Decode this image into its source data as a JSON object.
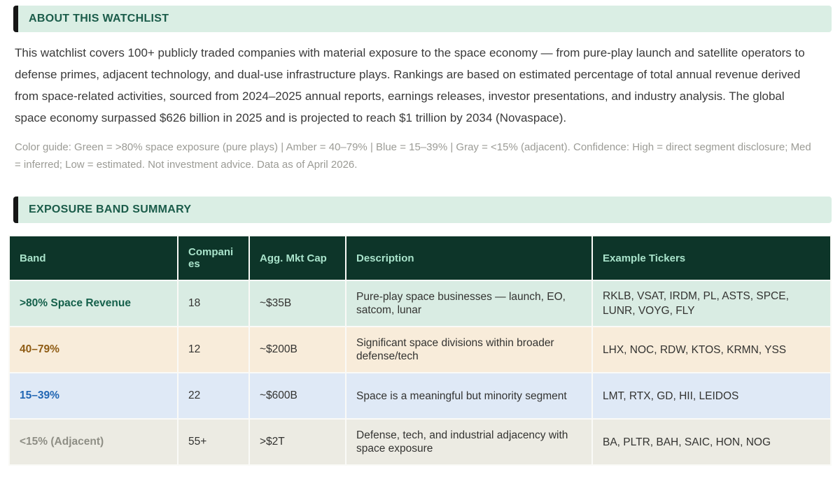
{
  "sections": {
    "about": {
      "title": "ABOUT THIS WATCHLIST",
      "body": "This watchlist covers 100+ publicly traded companies with material exposure to the space economy — from pure-play launch and satellite operators to defense primes, adjacent technology, and dual-use infrastructure plays. Rankings are based on estimated percentage of total annual revenue derived from space-related activities, sourced from 2024–2025 annual reports, earnings releases, investor presentations, and industry analysis. The global space economy surpassed $626 billion in 2025 and is projected to reach $1 trillion by 2034 (Novaspace).",
      "note": "Color guide: Green = >80% space exposure (pure plays) | Amber = 40–79% | Blue = 15–39% | Gray = <15% (adjacent). Confidence: High = direct segment disclosure; Med = inferred; Low = estimated. Not investment advice. Data as of April 2026."
    },
    "summary": {
      "title": "EXPOSURE BAND SUMMARY"
    }
  },
  "table": {
    "headers": [
      "Band",
      "Companies",
      "Agg. Mkt Cap",
      "Description",
      "Example Tickers"
    ],
    "rows": [
      {
        "band": ">80% Space Revenue",
        "companies": "18",
        "mkt_cap": "~$35B",
        "description": "Pure-play space businesses — launch, EO, satcom, lunar",
        "tickers": "RKLB, VSAT, IRDM, PL, ASTS, SPCE, LUNR, VOYG, FLY",
        "band_color": "#15604b",
        "row_bg": "#d9ece3"
      },
      {
        "band": "40–79%",
        "companies": "12",
        "mkt_cap": "~$200B",
        "description": "Significant space divisions within broader defense/tech",
        "tickers": "LHX, NOC, RDW, KTOS, KRMN, YSS",
        "band_color": "#8f5c14",
        "row_bg": "#f8ecda"
      },
      {
        "band": "15–39%",
        "companies": "22",
        "mkt_cap": "~$600B",
        "description": "Space is a meaningful but minority segment",
        "tickers": "LMT, RTX, GD, HII, LEIDOS",
        "band_color": "#2166b3",
        "row_bg": "#dfe9f6"
      },
      {
        "band": "<15% (Adjacent)",
        "companies": "55+",
        "mkt_cap": ">$2T",
        "description": "Defense, tech, and industrial adjacency with space exposure",
        "tickers": "BA, PLTR, BAH, SAIC, HON, NOG",
        "band_color": "#8e8e85",
        "row_bg": "#ecebe3"
      }
    ]
  },
  "colors": {
    "section_header_bg": "#daeee4",
    "section_header_text": "#1b5c4a",
    "section_header_bar": "#161616",
    "table_header_bg": "#0d3529",
    "table_header_text": "#a9e3cb"
  }
}
